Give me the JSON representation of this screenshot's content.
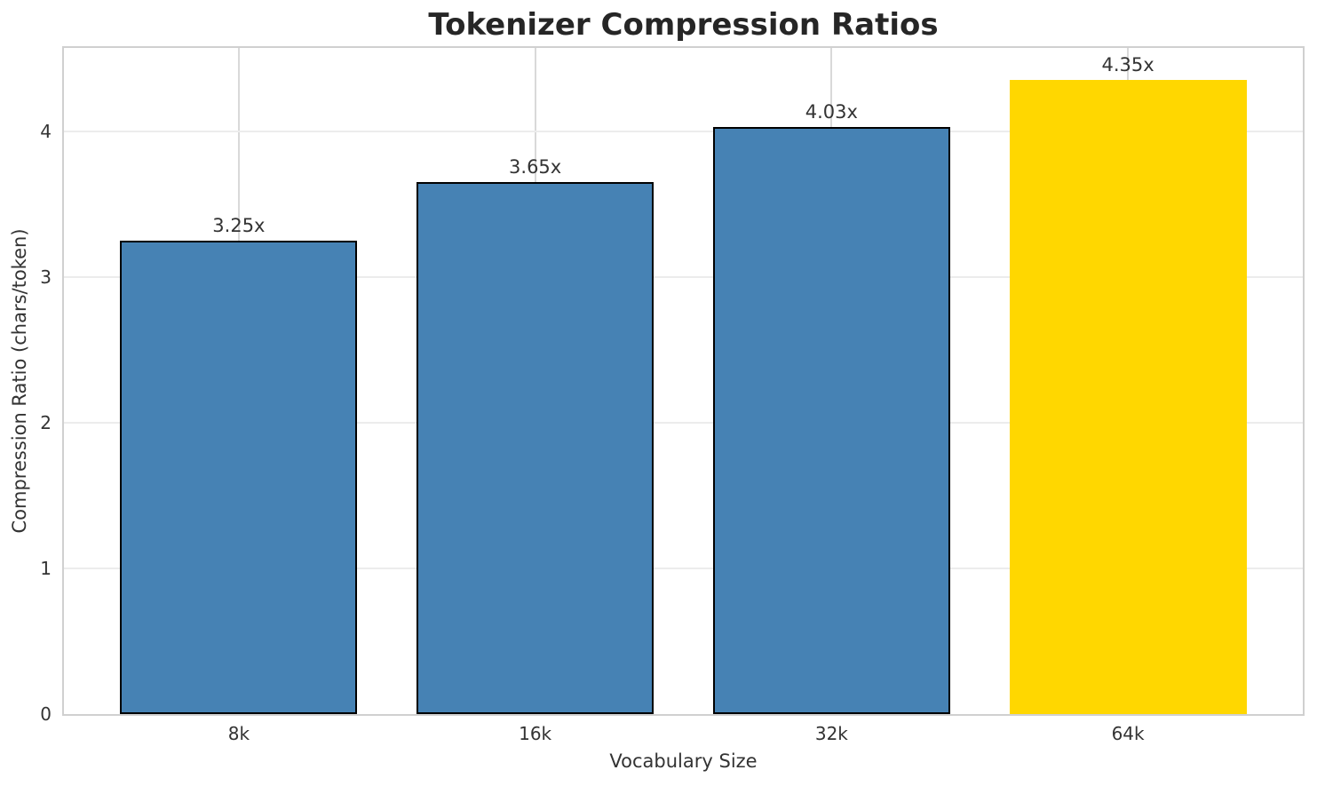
{
  "chart_data": {
    "type": "bar",
    "title": "Tokenizer Compression Ratios",
    "xlabel": "Vocabulary Size",
    "ylabel": "Compression Ratio (chars/token)",
    "categories": [
      "8k",
      "16k",
      "32k",
      "64k"
    ],
    "values": [
      3.25,
      3.65,
      4.03,
      4.35
    ],
    "bar_labels": [
      "3.25x",
      "3.65x",
      "4.03x",
      "4.35x"
    ],
    "yticks": [
      0,
      1,
      2,
      3,
      4
    ],
    "ylim": [
      0,
      4.57
    ],
    "grid": true,
    "legend": "none",
    "bar_colors": [
      "#4682B4",
      "#4682B4",
      "#4682B4",
      "#FFD700"
    ],
    "bar_edge_colors": [
      "#000000",
      "#000000",
      "#000000",
      "none"
    ],
    "highlight_category": "64k",
    "accent_blue": "#4682B4",
    "accent_gold": "#FFD700"
  }
}
